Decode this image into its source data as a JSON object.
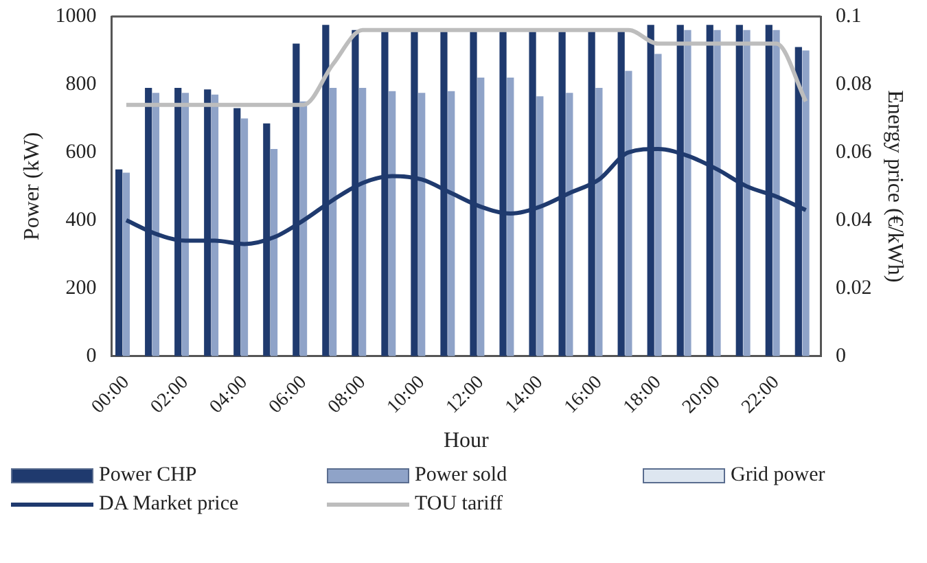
{
  "chart_data": {
    "type": "bar",
    "xlabel": "Hour",
    "ylabel": "Power (kW)",
    "y2label": "Energy price (€/kWh)",
    "categories": [
      "00:00",
      null,
      "02:00",
      null,
      "04:00",
      null,
      "06:00",
      null,
      "08:00",
      null,
      "10:00",
      null,
      "12:00",
      null,
      "14:00",
      null,
      "16:00",
      null,
      "18:00",
      null,
      "20:00",
      null,
      "22:00",
      null
    ],
    "series": [
      {
        "name": "Power CHP",
        "color": "#1f3a6e",
        "values": [
          550,
          790,
          790,
          785,
          730,
          685,
          920,
          975,
          960,
          955,
          955,
          955,
          955,
          955,
          955,
          955,
          960,
          960,
          975,
          975,
          975,
          975,
          975,
          910
        ]
      },
      {
        "name": "Power sold",
        "color": "#8fa3c8",
        "values": [
          540,
          775,
          775,
          770,
          700,
          610,
          750,
          790,
          790,
          780,
          775,
          780,
          820,
          820,
          765,
          775,
          790,
          840,
          890,
          960,
          960,
          960,
          960,
          900
        ]
      },
      {
        "name": "Grid power",
        "color": "#dde6f0",
        "values": [
          0,
          0,
          0,
          0,
          0,
          0,
          0,
          0,
          0,
          0,
          0,
          0,
          0,
          0,
          0,
          0,
          0,
          0,
          0,
          0,
          0,
          0,
          0,
          0
        ]
      },
      {
        "name": "DA Market price",
        "type": "line",
        "axis": "y2",
        "color": "#1f3a6e",
        "values": [
          0.04,
          0.036,
          0.034,
          0.034,
          0.033,
          0.035,
          0.04,
          0.046,
          0.051,
          0.053,
          0.052,
          0.048,
          0.044,
          0.042,
          0.044,
          0.048,
          0.052,
          0.06,
          0.061,
          0.059,
          0.055,
          0.05,
          0.047,
          0.043
        ]
      },
      {
        "name": "TOU tariff",
        "type": "line",
        "axis": "y2",
        "color": "#bdbdbd",
        "values": [
          0.074,
          0.074,
          0.074,
          0.074,
          0.074,
          0.074,
          0.074,
          0.086,
          0.096,
          0.096,
          0.096,
          0.096,
          0.096,
          0.096,
          0.096,
          0.096,
          0.096,
          0.096,
          0.092,
          0.092,
          0.092,
          0.092,
          0.092,
          0.075
        ]
      }
    ],
    "ylim": [
      0,
      1000
    ],
    "yticks": [
      0,
      200,
      400,
      600,
      800,
      1000
    ],
    "y2lim": [
      0,
      0.1
    ],
    "y2ticks": [
      0,
      0.02,
      0.04,
      0.06,
      0.08,
      0.1
    ],
    "grid": false,
    "legend": "bottom",
    "marker": "none"
  }
}
